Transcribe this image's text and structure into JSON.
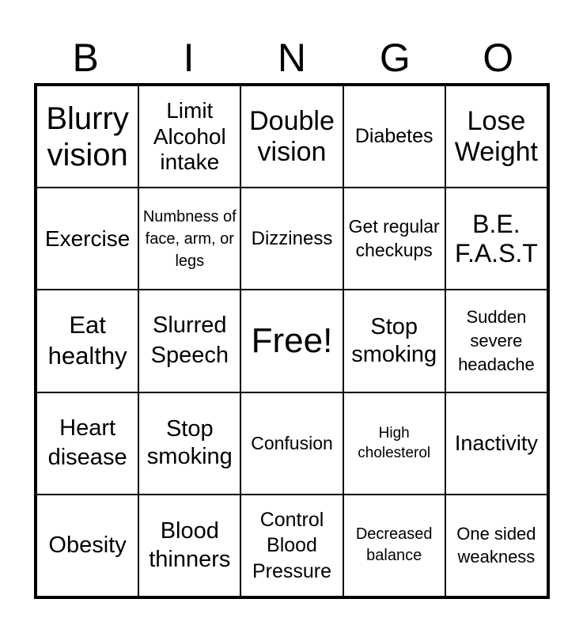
{
  "header": [
    "B",
    "I",
    "N",
    "G",
    "O"
  ],
  "cells": [
    "Blurry vision",
    "Limit Alcohol intake",
    "Double vision",
    "Diabetes",
    "Lose Weight",
    "Exercise",
    "Numbness of face, arm, or legs",
    "Dizziness",
    "Get regular checkups",
    "B.E. F.A.S.T",
    "Eat healthy",
    "Slurred Speech",
    "Free!",
    "Stop smoking",
    "Sudden severe headache",
    "Heart disease",
    "Stop smoking",
    "Confusion",
    "High cholesterol",
    "Inactivity",
    "Obesity",
    "Blood thinners",
    "Control Blood Pressure",
    "Decreased balance",
    "One sided weakness"
  ]
}
